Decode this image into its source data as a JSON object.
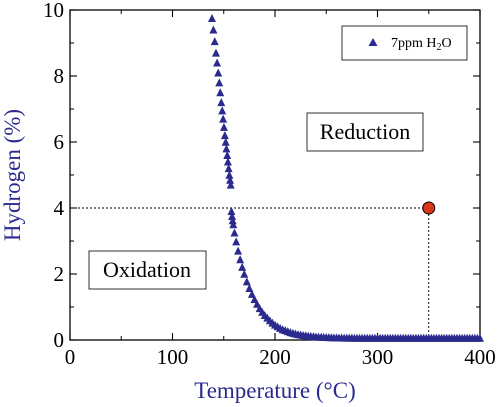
{
  "colors": {
    "marker": "#2b2a8e",
    "axis_title": "#2b2a8e",
    "highlight_point": "#d9361c",
    "frame": "#000000"
  },
  "chart_data": {
    "type": "scatter",
    "title": "",
    "xlabel": "Temperature (°C)",
    "ylabel": "Hydrogen (%)",
    "xlim": [
      0,
      400
    ],
    "ylim": [
      0,
      10
    ],
    "x_ticks": [
      0,
      100,
      200,
      300,
      400
    ],
    "y_ticks": [
      0,
      2,
      4,
      6,
      8,
      10
    ],
    "grid": false,
    "legend_position": "top-right",
    "legend": {
      "prefix": "7ppm H",
      "subscript": "2",
      "suffix": "O"
    },
    "series": [
      {
        "name": "7ppm H2O",
        "marker": "triangle",
        "x": [
          138.5,
          139.9,
          141.2,
          142.4,
          143.5,
          144.6,
          145.6,
          146.6,
          147.6,
          148.5,
          149.4,
          150.2,
          151.1,
          151.9,
          152.6,
          153.4,
          154.1,
          154.8,
          155.5,
          156.2,
          156.8,
          157.5,
          158.1,
          158.7,
          159.3,
          160.5,
          162.1,
          164.0,
          166.0,
          168.0,
          170.0,
          172.5,
          175.0,
          177.5,
          180.0,
          182.5,
          185.0,
          187.5,
          190.0,
          192.5,
          195.0,
          197.5,
          200.0,
          202.5,
          205.0,
          207.5,
          210.0,
          212.5,
          215.0,
          217.5,
          220.0,
          222.5,
          225.0,
          227.5,
          230.0,
          232.5,
          235.0,
          237.5,
          240.0,
          242.5,
          245.0,
          247.5,
          250.0,
          252.5,
          255.0,
          257.5,
          260.0,
          262.5,
          265.0,
          267.5,
          270.0,
          272.5,
          275.0,
          277.5,
          280.0,
          282.5,
          285.0,
          287.5,
          290.0,
          292.5,
          295.0,
          297.5,
          300.0,
          302.5,
          305.0,
          307.5,
          310.0,
          312.5,
          315.0,
          317.5,
          320.0,
          322.5,
          325.0,
          327.5,
          330.0,
          332.5,
          335.0,
          337.5,
          340.0,
          342.5,
          345.0,
          347.5,
          350.0,
          352.5,
          355.0,
          357.5,
          360.0,
          362.5,
          365.0,
          367.5,
          370.0,
          372.5,
          375.0,
          377.5,
          380.0,
          382.5,
          385.0,
          387.5,
          390.0,
          392.5,
          395.0,
          397.5,
          400.0
        ],
        "y": [
          9.75,
          9.4,
          9.05,
          8.7,
          8.4,
          8.1,
          7.8,
          7.5,
          7.2,
          6.95,
          6.7,
          6.45,
          6.2,
          6.0,
          5.8,
          5.6,
          5.4,
          5.2,
          5.0,
          4.85,
          4.7,
          3.9,
          3.75,
          3.62,
          3.5,
          3.25,
          2.98,
          2.7,
          2.44,
          2.21,
          2.0,
          1.77,
          1.57,
          1.39,
          1.23,
          1.09,
          0.96,
          0.85,
          0.75,
          0.67,
          0.59,
          0.52,
          0.46,
          0.41,
          0.36,
          0.32,
          0.29,
          0.26,
          0.23,
          0.21,
          0.19,
          0.17,
          0.16,
          0.145,
          0.135,
          0.125,
          0.115,
          0.108,
          0.1,
          0.095,
          0.09,
          0.086,
          0.082,
          0.079,
          0.076,
          0.073,
          0.071,
          0.069,
          0.067,
          0.066,
          0.065,
          0.064,
          0.063,
          0.062,
          0.061,
          0.06,
          0.06,
          0.06,
          0.06,
          0.06,
          0.06,
          0.06,
          0.06,
          0.06,
          0.06,
          0.06,
          0.06,
          0.06,
          0.06,
          0.06,
          0.06,
          0.06,
          0.06,
          0.06,
          0.06,
          0.06,
          0.06,
          0.06,
          0.06,
          0.06,
          0.06,
          0.06,
          0.06,
          0.06,
          0.06,
          0.06,
          0.06,
          0.06,
          0.06,
          0.06,
          0.06,
          0.06,
          0.06,
          0.06,
          0.06,
          0.06,
          0.06,
          0.06,
          0.06,
          0.06,
          0.06,
          0.06,
          0.06
        ]
      }
    ],
    "highlight_point": {
      "x": 350,
      "y": 4
    },
    "reference_lines": [
      {
        "orientation": "horizontal",
        "y": 4,
        "x_from": 0,
        "x_to": 350,
        "style": "dotted"
      },
      {
        "orientation": "vertical",
        "x": 350,
        "y_from": 0,
        "y_to": 4,
        "style": "dotted"
      }
    ],
    "annotations": [
      {
        "text": "Reduction",
        "x": 300,
        "y": 6.2
      },
      {
        "text": "Oxidation",
        "x": 90,
        "y": 2.15
      }
    ]
  }
}
